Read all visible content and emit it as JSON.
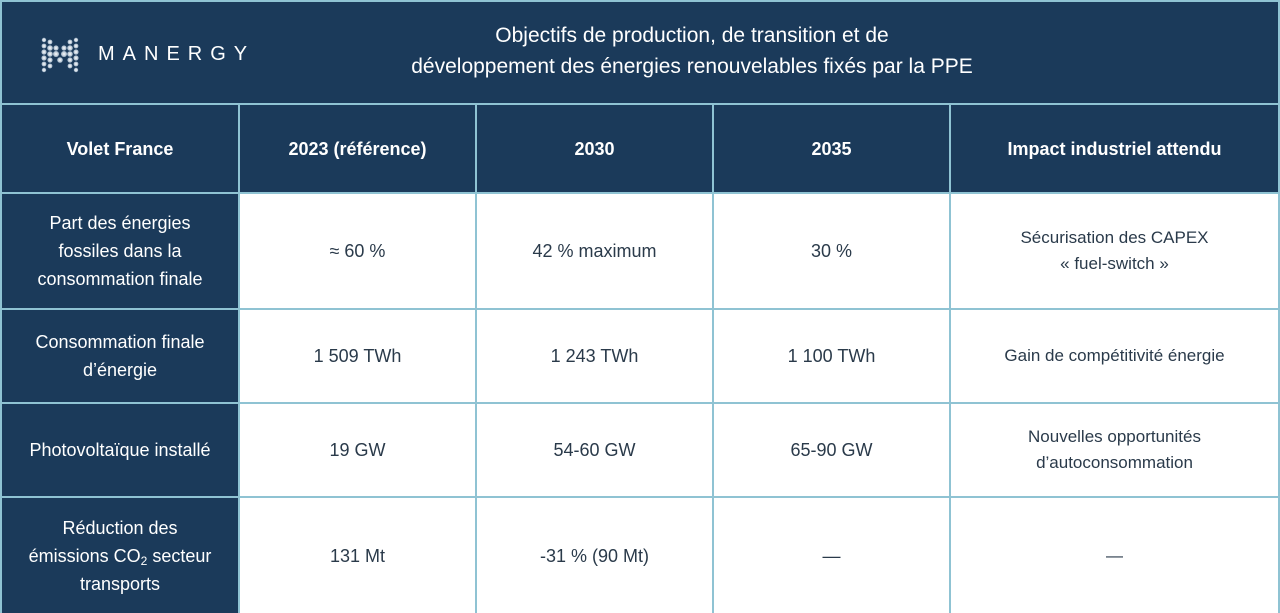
{
  "brand": {
    "name": "MANERGY",
    "logo_icon": "m-dot-logo-icon"
  },
  "title": {
    "line1": "Objectifs de production, de transition et de",
    "line2": "développement des énergies renouvelables fixés par la PPE"
  },
  "table": {
    "headers": [
      "Volet France",
      "2023 (référence)",
      "2030",
      "2035",
      "Impact industriel attendu"
    ],
    "rows": [
      {
        "label_lines": [
          "Part des énergies",
          "fossiles dans la",
          "consommation finale"
        ],
        "y2023": "≈ 60 %",
        "y2030": "42 % maximum",
        "y2035": "30 %",
        "impact_lines": [
          "Sécurisation des CAPEX",
          "« fuel-switch »"
        ]
      },
      {
        "label_lines": [
          "Consommation finale",
          "d’énergie"
        ],
        "y2023": "1 509 TWh",
        "y2030": "1 243 TWh",
        "y2035": "1 100 TWh",
        "impact_lines": [
          "Gain de compétitivité énergie"
        ]
      },
      {
        "label_lines": [
          "Photovoltaïque installé"
        ],
        "y2023": "19 GW",
        "y2030": "54-60 GW",
        "y2035": "65-90 GW",
        "impact_lines": [
          "Nouvelles opportunités",
          "d’autoconsommation"
        ]
      },
      {
        "label_line1": "Réduction des",
        "label_line2_pre": "émissions CO",
        "label_line2_sub": "2",
        "label_line2_post": " secteur",
        "label_line3": "transports",
        "y2023": "131 Mt",
        "y2030": "-31 % (90 Mt)",
        "y2035": "—",
        "impact": "—"
      }
    ]
  }
}
